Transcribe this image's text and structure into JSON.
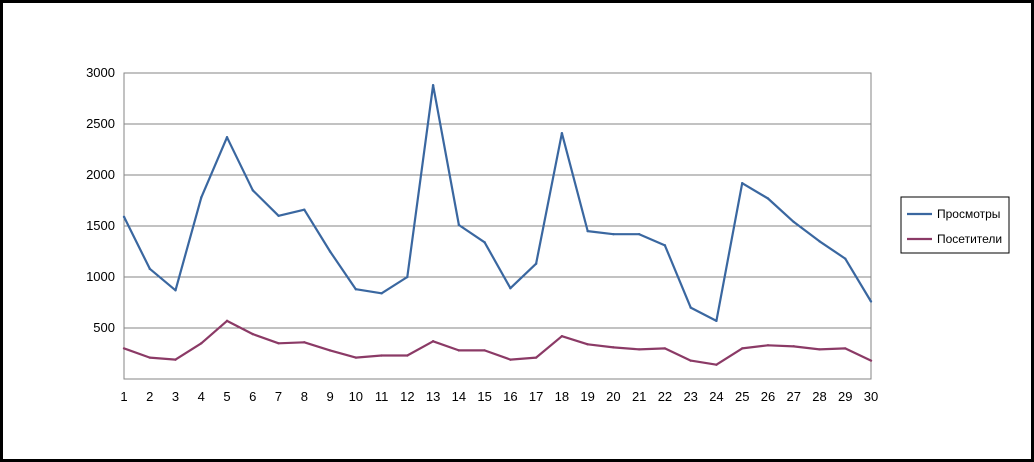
{
  "chart_data": {
    "type": "line",
    "title": "",
    "xlabel": "",
    "ylabel": "",
    "x": [
      1,
      2,
      3,
      4,
      5,
      6,
      7,
      8,
      9,
      10,
      11,
      12,
      13,
      14,
      15,
      16,
      17,
      18,
      19,
      20,
      21,
      22,
      23,
      24,
      25,
      26,
      27,
      28,
      29,
      30
    ],
    "x_tick_labels": [
      "1",
      "2",
      "3",
      "4",
      "5",
      "6",
      "7",
      "8",
      "9",
      "10",
      "11",
      "12",
      "13",
      "14",
      "15",
      "16",
      "17",
      "18",
      "19",
      "20",
      "21",
      "22",
      "23",
      "24",
      "25",
      "26",
      "27",
      "28",
      "29",
      "30"
    ],
    "ylim": [
      0,
      3000
    ],
    "y_ticks": [
      500,
      1000,
      1500,
      2000,
      2500,
      3000
    ],
    "y_tick_labels": [
      "500",
      "1000",
      "1500",
      "2000",
      "2500",
      "3000"
    ],
    "grid": true,
    "legend_position": "right",
    "series": [
      {
        "name": "Просмотры",
        "color": "#3a67a0",
        "values": [
          1590,
          1080,
          870,
          1780,
          2370,
          1850,
          1600,
          1660,
          1250,
          880,
          840,
          1000,
          2880,
          1510,
          1340,
          890,
          1130,
          2410,
          1450,
          1420,
          1420,
          1310,
          700,
          570,
          1920,
          1770,
          1540,
          1350,
          1180,
          760
        ]
      },
      {
        "name": "Посетители",
        "color": "#8b3a66",
        "values": [
          300,
          210,
          190,
          350,
          570,
          440,
          350,
          360,
          280,
          210,
          230,
          230,
          370,
          280,
          280,
          190,
          210,
          420,
          340,
          310,
          290,
          300,
          180,
          140,
          300,
          330,
          320,
          290,
          300,
          180
        ]
      }
    ]
  }
}
